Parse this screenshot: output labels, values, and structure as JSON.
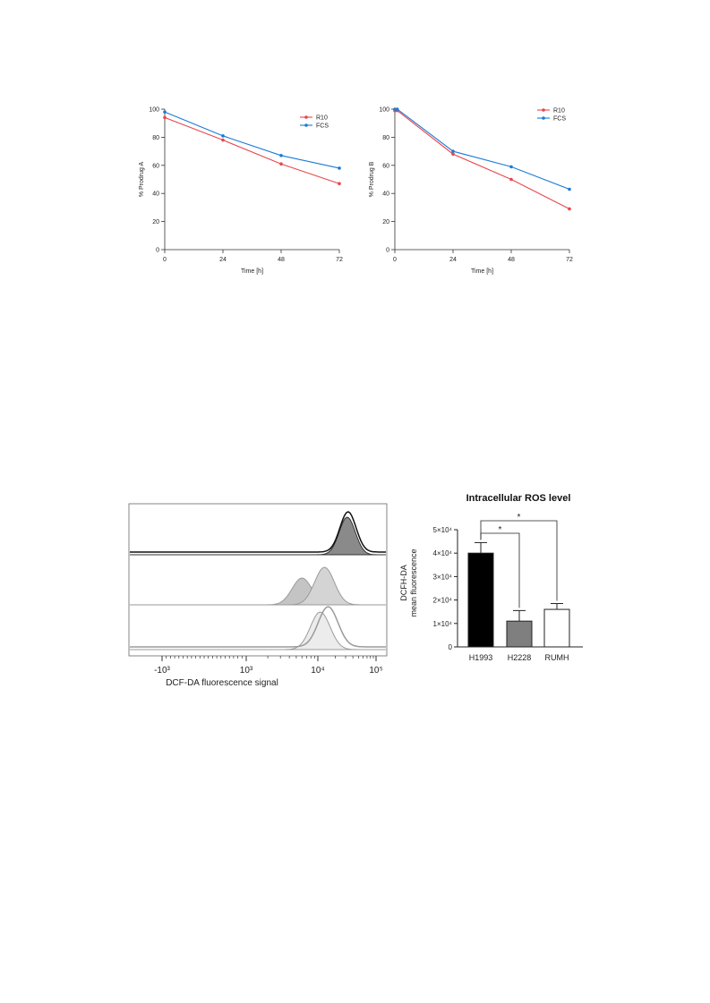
{
  "chart_data": [
    {
      "type": "line",
      "xlabel": "Time [h]",
      "ylabel": "% Prodrug A",
      "x": [
        0,
        24,
        48,
        72
      ],
      "xticks": [
        "0",
        "24",
        "48",
        "72"
      ],
      "yticks": [
        "0",
        "20",
        "40",
        "60",
        "80",
        "100"
      ],
      "xlim": [
        0,
        72
      ],
      "ylim": [
        0,
        100
      ],
      "grid": false,
      "legend_position": "top-right",
      "series": [
        {
          "name": "R10",
          "values": [
            94,
            78,
            61,
            47
          ],
          "color": "#e8474c"
        },
        {
          "name": "FCS",
          "values": [
            98,
            81,
            67,
            58
          ],
          "color": "#1c7bd6"
        }
      ]
    },
    {
      "type": "line",
      "xlabel": "Time [h]",
      "ylabel": "% Prodrug B",
      "x": [
        0,
        1,
        24,
        48,
        72
      ],
      "xticks": [
        "0",
        "24",
        "48",
        "72"
      ],
      "yticks": [
        "0",
        "20",
        "40",
        "60",
        "80",
        "100"
      ],
      "xlim": [
        0,
        72
      ],
      "ylim": [
        0,
        100
      ],
      "grid": false,
      "legend_position": "top-right",
      "series": [
        {
          "name": "R10",
          "values": [
            99,
            99,
            68,
            50,
            29
          ],
          "color": "#e8474c"
        },
        {
          "name": "FCS",
          "values": [
            100,
            100,
            70,
            59,
            43
          ],
          "color": "#1c7bd6"
        }
      ]
    },
    {
      "type": "area",
      "xlabel": "DCF-DA fluorescence signal",
      "xticks": [
        "-10³",
        "10³",
        "10⁴",
        "10⁵"
      ],
      "xscale": "biexponential",
      "grid": false,
      "tracks": [
        {
          "peaks": [
            {
              "center": 32000,
              "style": "filled",
              "color": "#8a8a8a"
            },
            {
              "center": 33000,
              "style": "open",
              "color": "#111111"
            }
          ]
        },
        {
          "peaks": [
            {
              "center": 6000,
              "style": "filled",
              "color": "#c4c4c4"
            },
            {
              "center": 13000,
              "style": "filled",
              "color": "#d4d4d4"
            }
          ]
        },
        {
          "peaks": [
            {
              "center": 11000,
              "style": "filled",
              "color": "#ececec"
            },
            {
              "center": 15000,
              "style": "open",
              "color": "#9a9a9a"
            }
          ]
        }
      ]
    },
    {
      "type": "bar",
      "title": "Intracellular ROS level",
      "ylabel_lines": [
        "DCFH-DA",
        "mean fluorescence"
      ],
      "categories": [
        "H1993",
        "H2228",
        "RUMH"
      ],
      "values": [
        40000,
        11000,
        16000
      ],
      "errors": [
        4500,
        4500,
        2500
      ],
      "colors": [
        "#000000",
        "#7f7f7f",
        "#ffffff"
      ],
      "ylim": [
        0,
        50000
      ],
      "yticks": [
        "0",
        "1×10⁴",
        "2×10⁴",
        "3×10⁴",
        "4×10⁴",
        "5×10⁴"
      ],
      "significance": [
        {
          "from": "H1993",
          "to": "H2228",
          "label": "*"
        },
        {
          "from": "H1993",
          "to": "RUMH",
          "label": "*"
        }
      ]
    }
  ]
}
